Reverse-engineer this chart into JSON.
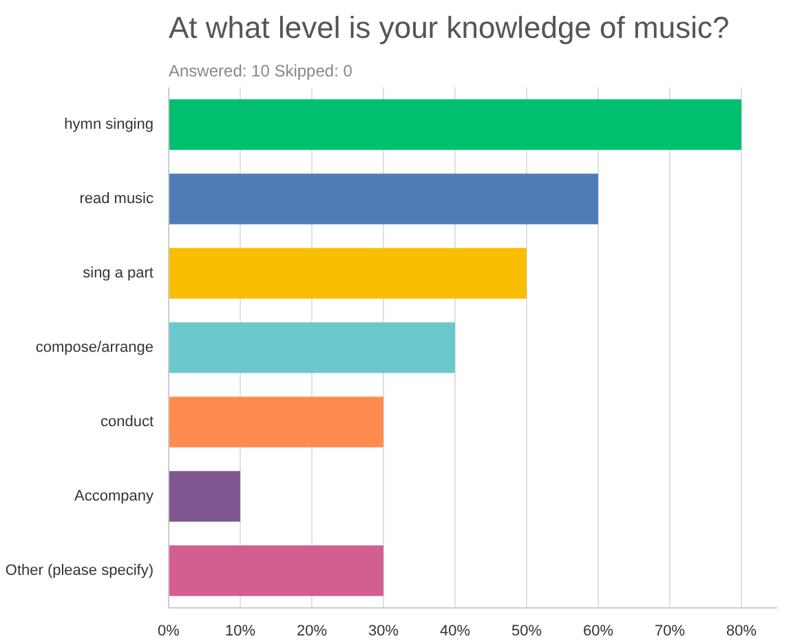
{
  "chart_data": {
    "type": "bar",
    "orientation": "horizontal",
    "title": "At what level is your knowledge of music?",
    "subtitle": "Answered: 10    Skipped: 0",
    "categories": [
      "hymn singing",
      "read music",
      "sing a part",
      "compose/arrange",
      "conduct",
      "Accompany",
      "Other (please specify)"
    ],
    "values": [
      80,
      60,
      50,
      40,
      30,
      10,
      30
    ],
    "colors": [
      "#00bf6f",
      "#507cb6",
      "#f9be00",
      "#6bc8cd",
      "#ff8b4f",
      "#7f5691",
      "#d25f90"
    ],
    "xlim": [
      0,
      85
    ],
    "xticks": [
      {
        "value": 0,
        "label": "0%"
      },
      {
        "value": 10,
        "label": "10%"
      },
      {
        "value": 20,
        "label": "20%"
      },
      {
        "value": 30,
        "label": "30%"
      },
      {
        "value": 40,
        "label": "40%"
      },
      {
        "value": 50,
        "label": "50%"
      },
      {
        "value": 60,
        "label": "60%"
      },
      {
        "value": 70,
        "label": "70%"
      },
      {
        "value": 80,
        "label": "80%"
      }
    ],
    "grid": "x"
  }
}
